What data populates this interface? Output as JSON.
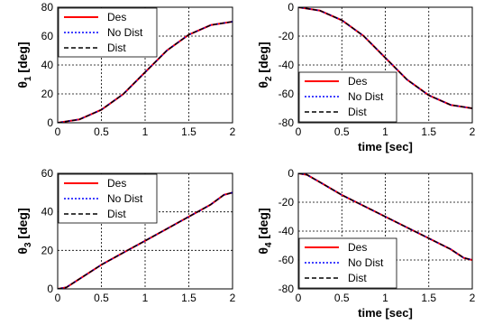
{
  "colors": {
    "des": "#ff0000",
    "nodist": "#0000ff",
    "dist": "#000000"
  },
  "chart_data": [
    {
      "type": "line",
      "ylabel_main": "θ",
      "ylabel_sub": "1",
      "ylabel_unit": " [deg]",
      "xlabel": "",
      "xlim": [
        0,
        2
      ],
      "ylim": [
        0,
        80
      ],
      "xticks": [
        "0",
        "0.5",
        "1",
        "1.5",
        "2"
      ],
      "yticks": [
        "0",
        "20",
        "40",
        "60",
        "80"
      ],
      "grid": true,
      "legend": "top-left",
      "x": [
        0,
        0.25,
        0.5,
        0.75,
        1,
        1.25,
        1.5,
        1.75,
        2
      ],
      "series": [
        {
          "name": "Des",
          "values": [
            0,
            2.4,
            9.0,
            19.9,
            35,
            50.1,
            61,
            67.6,
            70
          ]
        },
        {
          "name": "No Dist",
          "values": [
            0,
            2.4,
            9.0,
            19.9,
            35,
            50.1,
            61,
            67.6,
            70
          ]
        },
        {
          "name": "Dist",
          "values": [
            0,
            2.4,
            9.0,
            19.9,
            35,
            50.1,
            61,
            67.6,
            70
          ]
        }
      ]
    },
    {
      "type": "line",
      "ylabel_main": "θ",
      "ylabel_sub": "2",
      "ylabel_unit": " [deg]",
      "xlabel": "time [sec]",
      "xlim": [
        0,
        2
      ],
      "ylim": [
        -80,
        0
      ],
      "xticks": [
        "0",
        "0.5",
        "1",
        "1.5",
        "2"
      ],
      "yticks": [
        "0",
        "-20",
        "-40",
        "-60",
        "-80"
      ],
      "grid": true,
      "legend": "bottom-left",
      "x": [
        0,
        0.25,
        0.5,
        0.75,
        1,
        1.25,
        1.5,
        1.75,
        2
      ],
      "series": [
        {
          "name": "Des",
          "values": [
            0,
            -2.4,
            -9.0,
            -19.9,
            -35,
            -50.1,
            -61,
            -67.6,
            -70
          ]
        },
        {
          "name": "No Dist",
          "values": [
            0,
            -2.4,
            -9.0,
            -19.9,
            -35,
            -50.1,
            -61,
            -67.6,
            -70
          ]
        },
        {
          "name": "Dist",
          "values": [
            0,
            -2.4,
            -9.0,
            -19.9,
            -35,
            -50.1,
            -61,
            -67.6,
            -70
          ]
        }
      ]
    },
    {
      "type": "line",
      "ylabel_main": "θ",
      "ylabel_sub": "3",
      "ylabel_unit": " [deg]",
      "xlabel": "",
      "xlim": [
        0,
        2
      ],
      "ylim": [
        0,
        60
      ],
      "xticks": [
        "0",
        "0.5",
        "1",
        "1.5",
        "2"
      ],
      "yticks": [
        "0",
        "20",
        "40",
        "60"
      ],
      "grid": true,
      "legend": "top-left",
      "x": [
        0,
        0.1,
        0.25,
        0.5,
        0.75,
        1,
        1.25,
        1.5,
        1.75,
        1.9,
        2
      ],
      "series": [
        {
          "name": "Des",
          "values": [
            0,
            0.8,
            5.2,
            12.5,
            18.8,
            25,
            31.2,
            37.5,
            43.8,
            48.8,
            50
          ]
        },
        {
          "name": "No Dist",
          "values": [
            0,
            0.8,
            5.2,
            12.5,
            18.8,
            25,
            31.2,
            37.5,
            43.8,
            48.8,
            50
          ]
        },
        {
          "name": "Dist",
          "values": [
            0,
            0.8,
            5.2,
            12.5,
            18.8,
            25,
            31.2,
            37.5,
            43.8,
            48.8,
            50
          ]
        }
      ]
    },
    {
      "type": "line",
      "ylabel_main": "θ",
      "ylabel_sub": "4",
      "ylabel_unit": " [deg]",
      "xlabel": "time [sec]",
      "xlim": [
        0,
        2
      ],
      "ylim": [
        -80,
        0
      ],
      "xticks": [
        "0",
        "0.5",
        "1",
        "1.5",
        "2"
      ],
      "yticks": [
        "0",
        "-20",
        "-40",
        "-60",
        "-80"
      ],
      "grid": true,
      "legend": "bottom-left",
      "x": [
        0,
        0.1,
        0.25,
        0.5,
        0.75,
        1,
        1.25,
        1.5,
        1.75,
        1.9,
        2
      ],
      "series": [
        {
          "name": "Des",
          "values": [
            0,
            -1,
            -6.2,
            -15,
            -22.5,
            -30,
            -37.5,
            -45,
            -52.5,
            -58.5,
            -60
          ]
        },
        {
          "name": "No Dist",
          "values": [
            0,
            -1,
            -6.2,
            -15,
            -22.5,
            -30,
            -37.5,
            -45,
            -52.5,
            -58.5,
            -60
          ]
        },
        {
          "name": "Dist",
          "values": [
            0,
            -1,
            -6.2,
            -15,
            -22.5,
            -30,
            -37.5,
            -45,
            -52.5,
            -58.5,
            -60
          ]
        }
      ]
    }
  ]
}
